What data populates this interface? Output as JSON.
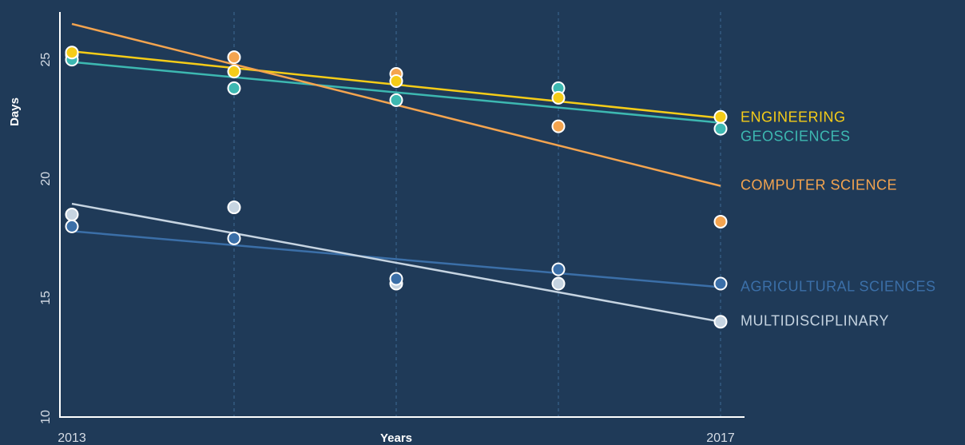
{
  "chart_data": {
    "type": "scatter",
    "xlabel": "Years",
    "ylabel": "Days",
    "x": [
      2013,
      2014,
      2015,
      2016,
      2017
    ],
    "x_tick_labels": [
      "2013",
      "",
      "",
      "",
      "2017"
    ],
    "xlim": [
      2013,
      2017
    ],
    "ylim": [
      10,
      27
    ],
    "y_ticks": [
      10,
      15,
      20,
      25
    ],
    "y_tick_labels": [
      "10",
      "15",
      "20",
      "25"
    ],
    "grid": "vertical dashed",
    "legend": "right, inline labels",
    "series": [
      {
        "name": "ENGINEERING",
        "color": "#f5cc18",
        "values": [
          25.3,
          24.5,
          24.1,
          23.4,
          22.6
        ],
        "trend": [
          25.35,
          22.55
        ]
      },
      {
        "name": "GEOSCIENCES",
        "color": "#3db8b1",
        "values": [
          25.0,
          23.8,
          23.3,
          23.8,
          22.1
        ],
        "trend": [
          24.9,
          22.35
        ]
      },
      {
        "name": "COMPUTER SCIENCE",
        "color": "#f4a44f",
        "values": [
          25.2,
          25.1,
          24.4,
          22.2,
          18.2
        ],
        "trend": [
          26.5,
          19.7
        ]
      },
      {
        "name": "AGRICULTURAL SCIENCES",
        "color": "#3b6fa8",
        "values": [
          18.0,
          17.5,
          15.8,
          16.2,
          15.6
        ],
        "trend": [
          17.8,
          15.45
        ]
      },
      {
        "name": "MULTIDISCIPLINARY",
        "color": "#c6d4e1",
        "values": [
          18.5,
          18.8,
          15.6,
          15.6,
          14.0
        ],
        "trend": [
          18.95,
          14.0
        ]
      }
    ]
  }
}
